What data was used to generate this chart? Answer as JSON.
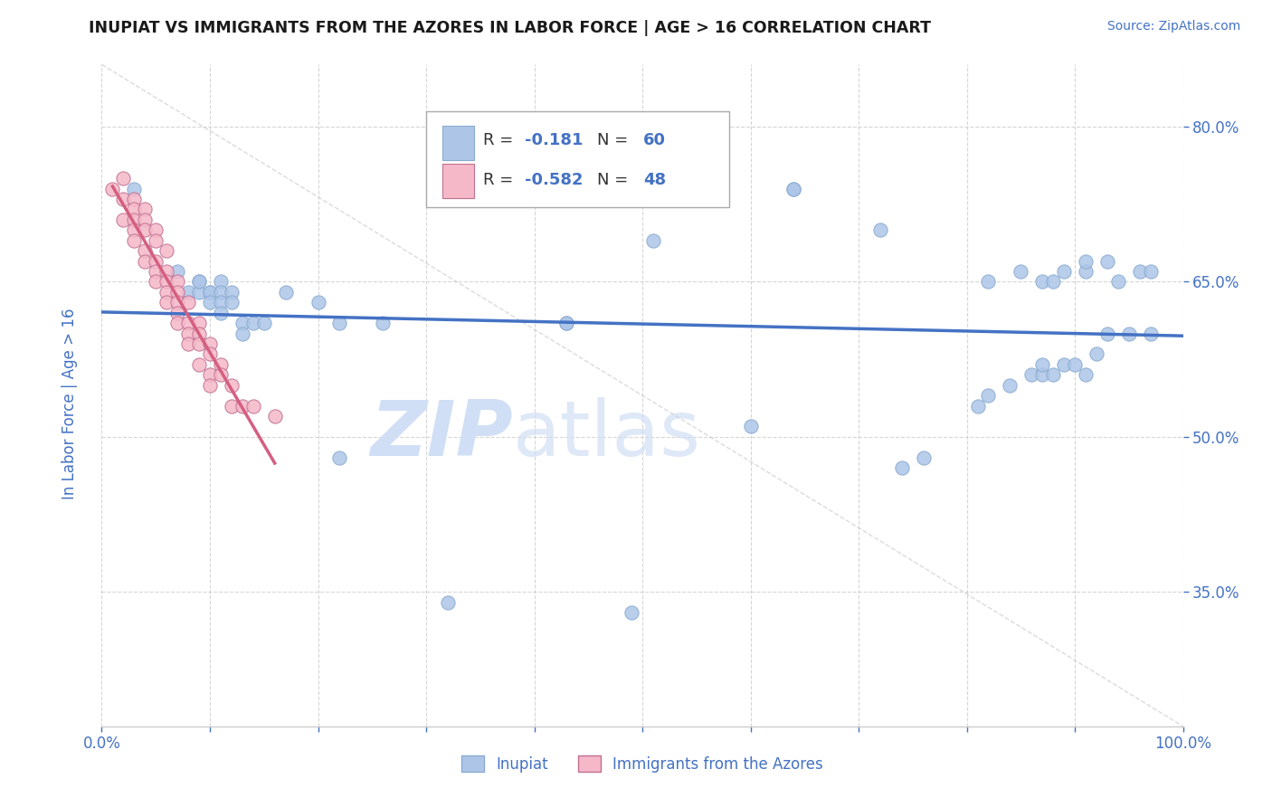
{
  "title": "INUPIAT VS IMMIGRANTS FROM THE AZORES IN LABOR FORCE | AGE > 16 CORRELATION CHART",
  "source_text": "Source: ZipAtlas.com",
  "ylabel": "In Labor Force | Age > 16",
  "xlim": [
    0.0,
    1.0
  ],
  "ylim": [
    0.22,
    0.86
  ],
  "x_ticks": [
    0.0,
    0.1,
    0.2,
    0.3,
    0.4,
    0.5,
    0.6,
    0.7,
    0.8,
    0.9,
    1.0
  ],
  "x_tick_labels": [
    "0.0%",
    "",
    "",
    "",
    "",
    "",
    "",
    "",
    "",
    "",
    "100.0%"
  ],
  "y_ticks": [
    0.35,
    0.5,
    0.65,
    0.8
  ],
  "y_tick_labels": [
    "35.0%",
    "50.0%",
    "65.0%",
    "80.0%"
  ],
  "legend_labels": [
    "Inupiat",
    "Immigrants from the Azores"
  ],
  "inupiat_color": "#adc6e8",
  "azores_color": "#f5b8c8",
  "inupiat_line_color": "#4472c4",
  "azores_line_color": "#d45f80",
  "watermark_zip": "ZIP",
  "watermark_atlas": "atlas",
  "watermark_color": "#d0dff5",
  "diagonal_color": "#cccccc",
  "R_inupiat": -0.181,
  "N_inupiat": 60,
  "R_azores": -0.582,
  "N_azores": 48,
  "title_color": "#1a1a1a",
  "axis_label_color": "#4472c4",
  "tick_label_color": "#4472c4",
  "grid_color": "#cccccc",
  "background_color": "#ffffff",
  "inupiat_x": [
    0.03,
    0.07,
    0.08,
    0.09,
    0.09,
    0.09,
    0.1,
    0.1,
    0.1,
    0.11,
    0.11,
    0.11,
    0.11,
    0.12,
    0.12,
    0.13,
    0.13,
    0.14,
    0.15,
    0.17,
    0.2,
    0.22,
    0.26,
    0.43,
    0.43,
    0.51,
    0.64,
    0.64,
    0.72,
    0.82,
    0.85,
    0.87,
    0.88,
    0.89,
    0.91,
    0.91,
    0.93,
    0.94,
    0.96,
    0.97,
    0.22,
    0.32,
    0.49,
    0.6,
    0.74,
    0.76,
    0.81,
    0.82,
    0.84,
    0.86,
    0.87,
    0.87,
    0.88,
    0.89,
    0.9,
    0.91,
    0.92,
    0.93,
    0.95,
    0.97
  ],
  "inupiat_y": [
    0.74,
    0.66,
    0.64,
    0.65,
    0.64,
    0.65,
    0.64,
    0.64,
    0.63,
    0.65,
    0.64,
    0.63,
    0.62,
    0.64,
    0.63,
    0.61,
    0.6,
    0.61,
    0.61,
    0.64,
    0.63,
    0.61,
    0.61,
    0.61,
    0.61,
    0.69,
    0.74,
    0.74,
    0.7,
    0.65,
    0.66,
    0.65,
    0.65,
    0.66,
    0.66,
    0.67,
    0.67,
    0.65,
    0.66,
    0.66,
    0.48,
    0.34,
    0.33,
    0.51,
    0.47,
    0.48,
    0.53,
    0.54,
    0.55,
    0.56,
    0.56,
    0.57,
    0.56,
    0.57,
    0.57,
    0.56,
    0.58,
    0.6,
    0.6,
    0.6
  ],
  "azores_x": [
    0.01,
    0.02,
    0.02,
    0.02,
    0.03,
    0.03,
    0.03,
    0.03,
    0.03,
    0.04,
    0.04,
    0.04,
    0.04,
    0.04,
    0.05,
    0.05,
    0.05,
    0.05,
    0.05,
    0.06,
    0.06,
    0.06,
    0.06,
    0.06,
    0.07,
    0.07,
    0.07,
    0.07,
    0.07,
    0.08,
    0.08,
    0.08,
    0.08,
    0.09,
    0.09,
    0.09,
    0.09,
    0.1,
    0.1,
    0.1,
    0.1,
    0.11,
    0.11,
    0.12,
    0.12,
    0.13,
    0.14,
    0.16
  ],
  "azores_y": [
    0.74,
    0.75,
    0.73,
    0.71,
    0.73,
    0.72,
    0.71,
    0.7,
    0.69,
    0.72,
    0.71,
    0.7,
    0.68,
    0.67,
    0.7,
    0.69,
    0.67,
    0.66,
    0.65,
    0.68,
    0.66,
    0.65,
    0.64,
    0.63,
    0.65,
    0.64,
    0.63,
    0.62,
    0.61,
    0.63,
    0.61,
    0.6,
    0.59,
    0.61,
    0.6,
    0.59,
    0.57,
    0.59,
    0.58,
    0.56,
    0.55,
    0.57,
    0.56,
    0.55,
    0.53,
    0.53,
    0.53,
    0.52
  ]
}
